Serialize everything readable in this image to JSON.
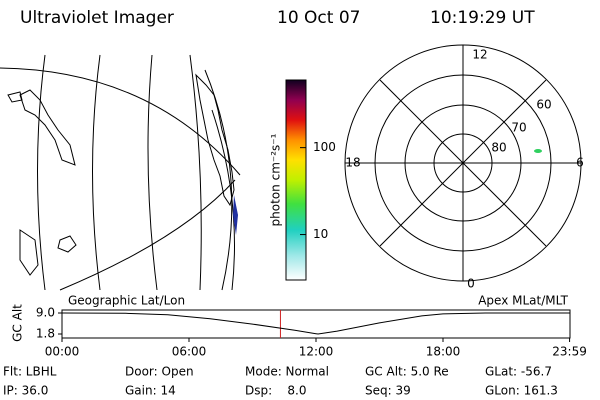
{
  "header": {
    "title": "Ultraviolet Imager",
    "date": "10 Oct 07",
    "time": "10:19:29 UT"
  },
  "colorbar": {
    "label": "photon cm⁻²s⁻¹",
    "scale": "log",
    "lim": [
      3,
      600
    ],
    "ticks": [
      10,
      100
    ]
  },
  "polar": {
    "mlt_labels": {
      "top": "12",
      "left": "18",
      "right": "6",
      "bottom": "0"
    },
    "lat_labels": [
      "60",
      "70",
      "80"
    ]
  },
  "altitude": {
    "left_label": "Geographic Lat/Lon",
    "right_label": "Apex MLat/MLT",
    "ylabel": "GC Alt",
    "yticks": [
      {
        "value": 9.0,
        "label": "9.0"
      },
      {
        "value": 1.8,
        "label": "1.8"
      }
    ],
    "xlim": [
      0,
      24
    ],
    "xticks": [
      {
        "value": 0,
        "label": "00:00"
      },
      {
        "value": 6,
        "label": "06:00"
      },
      {
        "value": 12,
        "label": "12:00"
      },
      {
        "value": 18,
        "label": "18:00"
      },
      {
        "value": 23.98,
        "label": "23:59"
      }
    ],
    "x": [
      0,
      3,
      5,
      7,
      9,
      11,
      12,
      12.1,
      13,
      15,
      17,
      18,
      20,
      24
    ],
    "values": [
      9.0,
      8.9,
      8.4,
      7.0,
      5.2,
      3.1,
      1.9,
      1.8,
      2.8,
      5.6,
      8.0,
      8.7,
      9.0,
      9.0
    ],
    "current_time": 10.32
  },
  "footer": {
    "rows": [
      [
        "Flt: LBHL",
        "Door: Open",
        "Mode: Normal",
        "GC Alt: 5.0 Re",
        "GLat: -56.7"
      ],
      [
        "IP: 36.0",
        "Gain: 14",
        "Dsp:    8.0",
        "Seq: 39",
        "GLon: 161.3"
      ]
    ]
  }
}
